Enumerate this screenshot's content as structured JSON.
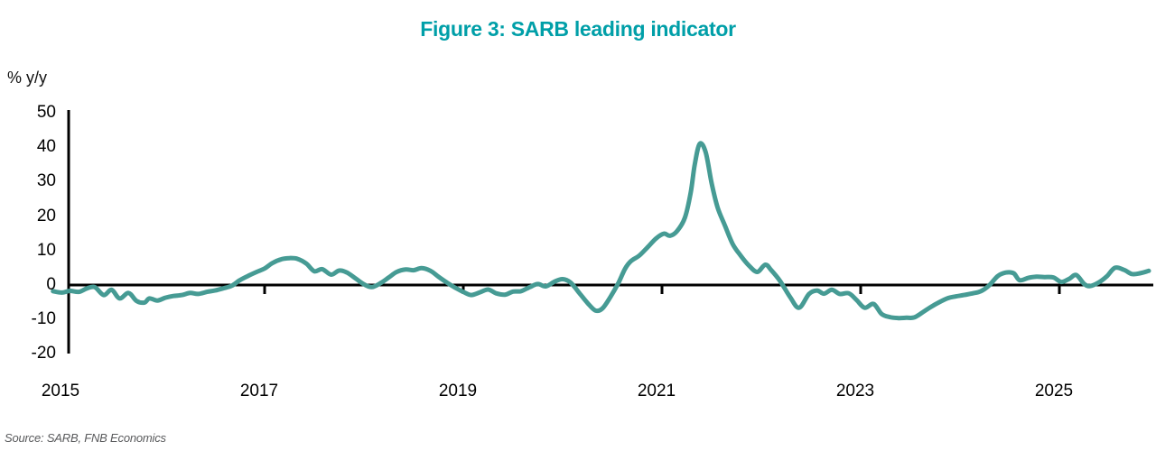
{
  "title": "Figure 3: SARB leading indicator",
  "y_axis_unit_label": "% y/y",
  "source_note": "Source: SARB, FNB Economics",
  "colors": {
    "title_text": "#009fa8",
    "line": "#469b94",
    "axis": "#000000",
    "tick_text": "#000000",
    "source_text": "#595a5c"
  },
  "chart_data": {
    "type": "line",
    "title": "Figure 3: SARB leading indicator",
    "xlabel": "",
    "ylabel": "% y/y",
    "ylim": [
      -20,
      50
    ],
    "yticks": [
      50,
      40,
      30,
      20,
      10,
      0,
      -10,
      -20
    ],
    "xticks": [
      2015,
      2017,
      2019,
      2021,
      2023,
      2025
    ],
    "x_range_years": [
      2014.87,
      2025.9
    ],
    "grid": false,
    "legend_position": "none",
    "baseline": 0,
    "series": [
      {
        "name": "SARB leading indicator (% y/y)",
        "x": [
          2014.87,
          2014.96,
          2015.04,
          2015.13,
          2015.21,
          2015.29,
          2015.38,
          2015.46,
          2015.54,
          2015.63,
          2015.71,
          2015.79,
          2015.84,
          2015.92,
          2016.0,
          2016.08,
          2016.17,
          2016.25,
          2016.33,
          2016.42,
          2016.5,
          2016.58,
          2016.67,
          2016.75,
          2016.83,
          2016.92,
          2017.0,
          2017.08,
          2017.17,
          2017.25,
          2017.33,
          2017.42,
          2017.5,
          2017.58,
          2017.67,
          2017.75,
          2017.83,
          2017.92,
          2018.0,
          2018.08,
          2018.17,
          2018.25,
          2018.33,
          2018.42,
          2018.5,
          2018.58,
          2018.67,
          2018.75,
          2018.83,
          2018.92,
          2019.0,
          2019.08,
          2019.17,
          2019.25,
          2019.33,
          2019.42,
          2019.5,
          2019.58,
          2019.67,
          2019.75,
          2019.83,
          2019.92,
          2020.0,
          2020.08,
          2020.17,
          2020.25,
          2020.33,
          2020.4,
          2020.48,
          2020.56,
          2020.63,
          2020.69,
          2020.77,
          2020.85,
          2020.94,
          2021.02,
          2021.08,
          2021.15,
          2021.23,
          2021.29,
          2021.33,
          2021.38,
          2021.44,
          2021.5,
          2021.56,
          2021.63,
          2021.71,
          2021.79,
          2021.88,
          2021.96,
          2022.04,
          2022.1,
          2022.19,
          2022.29,
          2022.38,
          2022.48,
          2022.56,
          2022.63,
          2022.71,
          2022.79,
          2022.88,
          2022.96,
          2023.04,
          2023.13,
          2023.21,
          2023.29,
          2023.38,
          2023.46,
          2023.54,
          2023.63,
          2023.71,
          2023.79,
          2023.88,
          2023.96,
          2024.04,
          2024.13,
          2024.21,
          2024.29,
          2024.38,
          2024.46,
          2024.54,
          2024.6,
          2024.69,
          2024.77,
          2024.85,
          2024.94,
          2025.02,
          2025.1,
          2025.17,
          2025.25,
          2025.31,
          2025.4,
          2025.48,
          2025.56,
          2025.65,
          2025.73,
          2025.81,
          2025.9
        ],
        "y": [
          -1.8,
          -2.2,
          -1.7,
          -2.0,
          -1.0,
          -0.6,
          -2.9,
          -1.4,
          -3.9,
          -2.3,
          -4.6,
          -5.1,
          -3.9,
          -4.5,
          -3.7,
          -3.2,
          -2.9,
          -2.3,
          -2.6,
          -2.0,
          -1.6,
          -1.0,
          -0.2,
          1.4,
          2.6,
          3.8,
          4.8,
          6.4,
          7.5,
          7.8,
          7.6,
          6.2,
          4.0,
          4.6,
          3.0,
          4.2,
          3.6,
          1.8,
          0.2,
          -0.6,
          0.6,
          2.2,
          3.8,
          4.5,
          4.3,
          4.9,
          4.1,
          2.4,
          0.8,
          -0.8,
          -2.0,
          -2.9,
          -2.1,
          -1.3,
          -2.4,
          -2.8,
          -1.9,
          -1.8,
          -0.6,
          0.3,
          -0.4,
          1.0,
          1.7,
          0.7,
          -2.4,
          -5.2,
          -7.4,
          -6.8,
          -3.5,
          0.5,
          4.8,
          7.0,
          8.5,
          10.8,
          13.5,
          14.9,
          14.3,
          15.6,
          19.5,
          27.0,
          35.0,
          41.0,
          38.5,
          29.5,
          22.5,
          17.5,
          12.0,
          8.6,
          5.5,
          3.8,
          5.9,
          4.3,
          1.1,
          -3.5,
          -6.6,
          -2.6,
          -1.6,
          -2.5,
          -1.4,
          -2.6,
          -2.4,
          -4.4,
          -6.6,
          -5.5,
          -8.4,
          -9.3,
          -9.6,
          -9.5,
          -9.4,
          -7.8,
          -6.3,
          -5.0,
          -3.8,
          -3.3,
          -2.9,
          -2.4,
          -1.8,
          -0.2,
          2.6,
          3.6,
          3.4,
          1.4,
          2.1,
          2.4,
          2.3,
          2.2,
          0.9,
          1.8,
          2.9,
          0.3,
          -0.3,
          0.8,
          2.6,
          5.0,
          4.4,
          3.2,
          3.4,
          4.1
        ]
      }
    ]
  }
}
